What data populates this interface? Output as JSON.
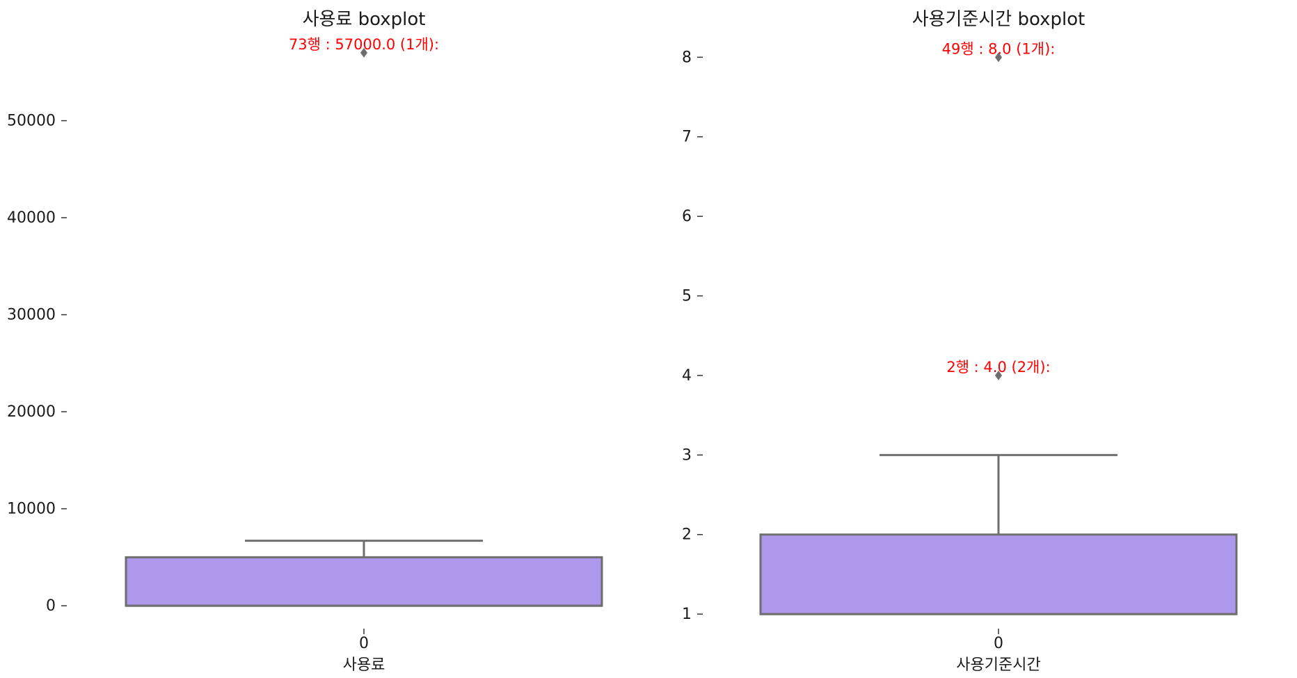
{
  "chart_data": [
    {
      "type": "boxplot",
      "title": "사용료 boxplot",
      "xlabel": "사용료",
      "categories": [
        "0"
      ],
      "ylim": [
        -2500,
        59000
      ],
      "yticks": [
        0,
        10000,
        20000,
        30000,
        40000,
        50000
      ],
      "ytick_labels": [
        "0",
        "10000",
        "20000",
        "30000",
        "40000",
        "50000"
      ],
      "box": {
        "q1": 0,
        "median": 0,
        "q3": 5000,
        "whisker_low": 0,
        "whisker_high": 6700
      },
      "outliers": [
        57000
      ],
      "annotations": [
        {
          "text": "73행 : 57000.0 (1개):",
          "value": 57000,
          "color": "#ff0000"
        }
      ],
      "box_color": "#ad98ec",
      "grid": false
    },
    {
      "type": "boxplot",
      "title": "사용기준시간 boxplot",
      "xlabel": "사용기준시간",
      "categories": [
        "0"
      ],
      "ylim": [
        0.8,
        8.3
      ],
      "yticks": [
        1,
        2,
        3,
        4,
        5,
        6,
        7,
        8
      ],
      "ytick_labels": [
        "1",
        "2",
        "3",
        "4",
        "5",
        "6",
        "7",
        "8"
      ],
      "box": {
        "q1": 1,
        "median": 1,
        "q3": 2,
        "whisker_low": 1,
        "whisker_high": 3
      },
      "outliers": [
        8,
        4
      ],
      "annotations": [
        {
          "text": "49행 : 8.0 (1개):",
          "value": 8,
          "color": "#ff0000"
        },
        {
          "text": "2행 : 4.0 (2개):",
          "value": 4,
          "color": "#ff0000"
        }
      ],
      "box_color": "#ad98ec",
      "grid": false
    }
  ]
}
